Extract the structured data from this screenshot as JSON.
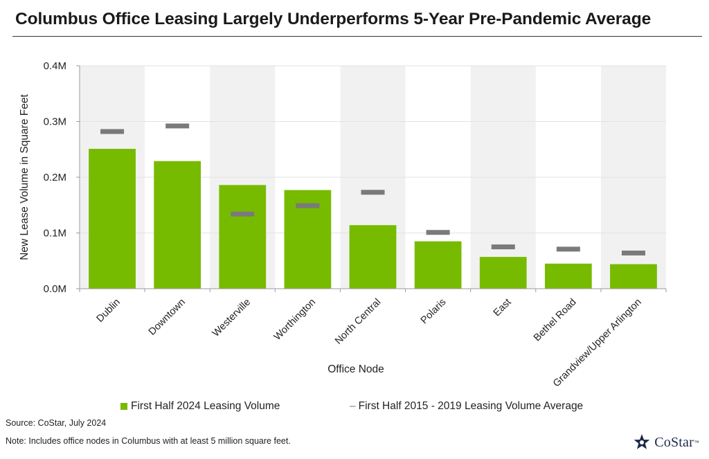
{
  "page": {
    "title": "Columbus Office Leasing Largely Underperforms 5-Year Pre-Pandemic Average",
    "source": "Source: CoStar, July 2024",
    "note": "Note: Includes office nodes in Columbus with at least 5 million square feet.",
    "logo_text": "CoStar",
    "logo_mark": "™"
  },
  "colors": {
    "bar": "#77bb00",
    "average_marker": "#7a7a7a",
    "band": "#f1f1f1",
    "grid": "#e2e2e2",
    "axis": "#9a9a9a",
    "logo": "#1c2a48"
  },
  "chart_data": {
    "type": "bar",
    "title": "Columbus Office Leasing Largely Underperforms 5-Year Pre-Pandemic Average",
    "xlabel": "Office Node",
    "ylabel": "New Lease Volume in Square Feet",
    "ylim": [
      0,
      400000
    ],
    "yticks": [
      0,
      100000,
      200000,
      300000,
      400000
    ],
    "ytick_labels": [
      "0.0M",
      "0.1M",
      "0.2M",
      "0.3M",
      "0.4M"
    ],
    "grid": true,
    "legend_position": "bottom",
    "categories": [
      "Dublin",
      "Downtown",
      "Westerville",
      "Worthington",
      "North Central",
      "Polaris",
      "East",
      "Bethel Road",
      "Grandview/Upper Arlington"
    ],
    "series": [
      {
        "name": "First Half 2024 Leasing Volume",
        "mark": "bar",
        "values": [
          251000,
          229000,
          186000,
          177000,
          114000,
          85000,
          57000,
          45000,
          44000
        ]
      },
      {
        "name": "First Half 2015 - 2019 Leasing Volume Average",
        "mark": "dash",
        "values": [
          282000,
          292000,
          134000,
          149000,
          173000,
          101000,
          75000,
          71000,
          64000
        ]
      }
    ]
  }
}
